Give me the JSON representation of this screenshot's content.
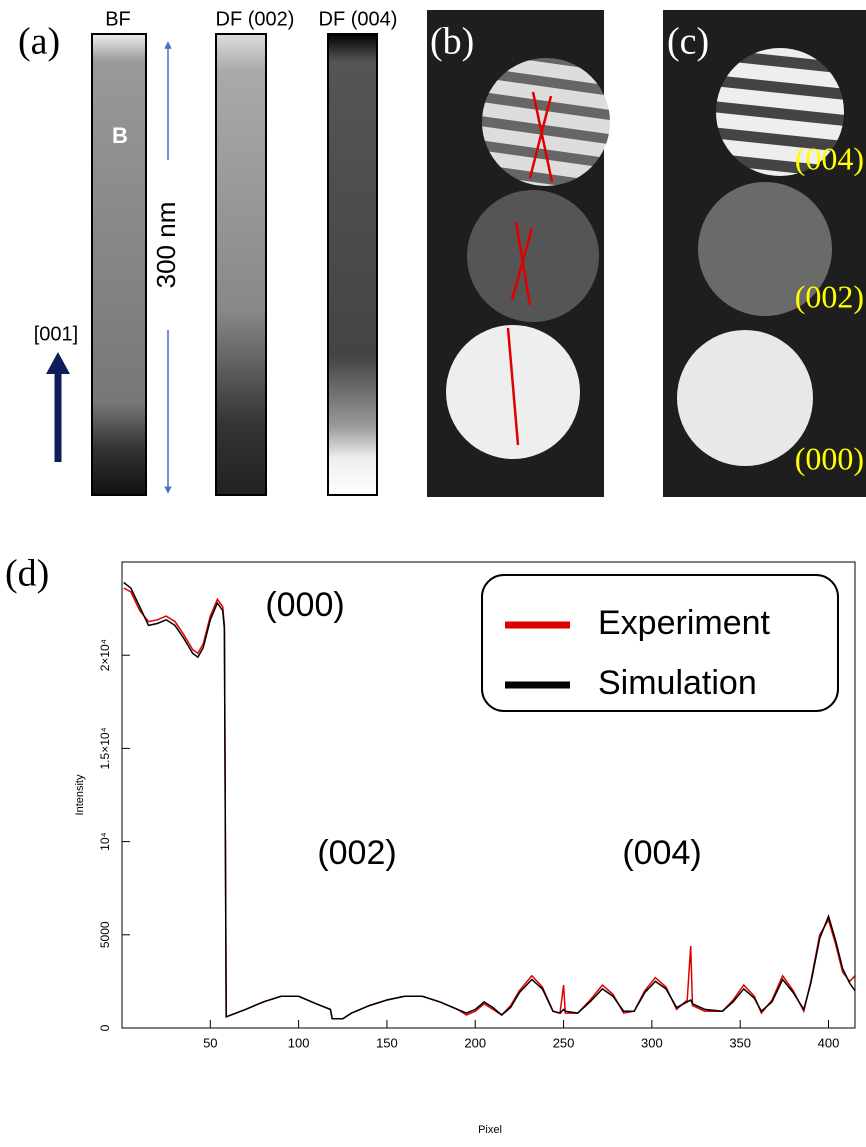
{
  "panels": {
    "a": {
      "label": "(a)",
      "columns": [
        "BF",
        "DF (002)",
        "DF (004)"
      ],
      "marker": "B",
      "scale": "300 nm",
      "direction": "[001]"
    },
    "b": {
      "label": "(b)"
    },
    "c": {
      "label": "(c)",
      "spots": [
        "(004)",
        "(002)",
        "(000)"
      ]
    }
  },
  "chart_data": {
    "type": "line",
    "panel_label": "(d)",
    "x_label": "Pixel",
    "y_label": "Intensity",
    "annotations": [
      "(000)",
      "(002)",
      "(004)"
    ],
    "x": [
      1,
      5,
      10,
      15,
      20,
      25,
      30,
      35,
      40,
      43,
      46,
      50,
      54,
      57,
      58,
      59,
      70,
      80,
      90,
      100,
      110,
      118,
      119,
      125,
      130,
      140,
      150,
      160,
      170,
      180,
      190,
      195,
      200,
      205,
      210,
      215,
      220,
      225,
      232,
      238,
      244,
      248,
      250,
      251,
      258,
      265,
      272,
      278,
      284,
      290,
      296,
      302,
      308,
      314,
      320,
      322,
      323,
      330,
      340,
      346,
      352,
      358,
      362,
      368,
      374,
      380,
      386,
      390,
      395,
      400,
      404,
      408,
      412,
      415
    ],
    "series": [
      {
        "name": "Experiment",
        "color": "#e00000",
        "values": [
          23600,
          23400,
          22400,
          21800,
          21900,
          22100,
          21800,
          21100,
          20300,
          20100,
          20600,
          22100,
          23000,
          22600,
          21600,
          600,
          1000,
          1400,
          1700,
          1700,
          1300,
          1000,
          500,
          500,
          800,
          1200,
          1500,
          1700,
          1700,
          1400,
          1000,
          700,
          900,
          1300,
          1000,
          700,
          1200,
          2000,
          2800,
          2200,
          900,
          800,
          2300,
          800,
          800,
          1500,
          2300,
          1800,
          800,
          900,
          2000,
          2700,
          2200,
          1000,
          1500,
          4400,
          1200,
          900,
          900,
          1500,
          2300,
          1700,
          800,
          1500,
          2800,
          2000,
          900,
          2500,
          5000,
          5800,
          4500,
          3000,
          2500,
          2800
        ]
      },
      {
        "name": "Simulation",
        "color": "#000000",
        "values": [
          23900,
          23600,
          22600,
          21600,
          21700,
          21900,
          21600,
          20900,
          20100,
          19900,
          20400,
          21900,
          22800,
          22400,
          21400,
          600,
          1000,
          1400,
          1700,
          1700,
          1300,
          1000,
          500,
          500,
          800,
          1200,
          1500,
          1700,
          1700,
          1400,
          1000,
          800,
          1000,
          1400,
          1100,
          700,
          1100,
          1900,
          2600,
          2100,
          900,
          800,
          1000,
          900,
          800,
          1400,
          2100,
          1700,
          900,
          900,
          1900,
          2500,
          2100,
          1100,
          1400,
          1500,
          1300,
          1000,
          900,
          1400,
          2100,
          1600,
          900,
          1400,
          2600,
          1900,
          1000,
          2400,
          4800,
          6000,
          4700,
          3200,
          2400,
          2000
        ]
      }
    ],
    "xlim": [
      0,
      415
    ],
    "ylim": [
      0,
      25000
    ],
    "xticks": [
      50,
      100,
      150,
      200,
      250,
      300,
      350,
      400
    ],
    "yticks": [
      0,
      5000,
      {
        "value": 10000,
        "label": "10⁴"
      },
      {
        "value": 15000,
        "label": "1.5×10⁴"
      },
      {
        "value": 20000,
        "label": "2×10⁴"
      }
    ]
  }
}
